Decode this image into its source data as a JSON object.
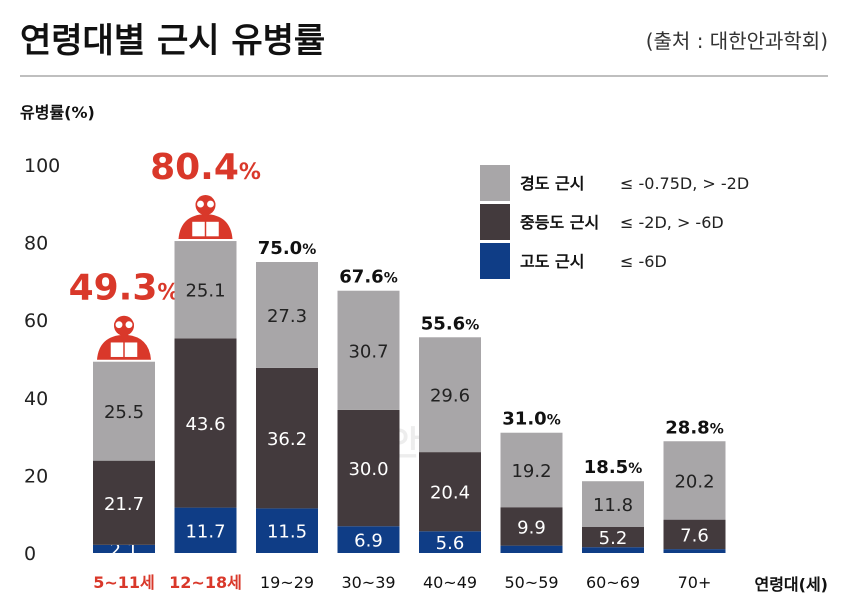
{
  "header": {
    "title": "연령대별 근시 유병률",
    "source": "(출처 : 대한안과학회)"
  },
  "watermark": "안과",
  "colors": {
    "mild": "#a8a6a8",
    "moderate": "#433a3d",
    "high": "#0f3d86",
    "highlight": "#d9382a",
    "text": "#1a1a1a",
    "axis": "#555555",
    "rule": "#999999"
  },
  "chart_data": {
    "type": "bar",
    "stacked": true,
    "ylabel": "유병률(%)",
    "xlabel": "연령대(세)",
    "ylim": [
      0,
      100
    ],
    "yticks": [
      0,
      20,
      40,
      60,
      80,
      100
    ],
    "categories": [
      "5~11세",
      "12~18세",
      "19~29",
      "30~39",
      "40~49",
      "50~59",
      "60~69",
      "70+"
    ],
    "highlight_categories": [
      0,
      1
    ],
    "series": [
      {
        "name": "고도 근시",
        "key": "high",
        "values": [
          2.1,
          11.7,
          11.5,
          6.9,
          5.6,
          1.9,
          1.5,
          1.0
        ]
      },
      {
        "name": "중등도 근시",
        "key": "moderate",
        "values": [
          21.7,
          43.6,
          36.2,
          30.0,
          20.4,
          9.9,
          5.2,
          7.6
        ]
      },
      {
        "name": "경도 근시",
        "key": "mild",
        "values": [
          25.5,
          25.1,
          27.3,
          30.7,
          29.6,
          19.2,
          11.8,
          20.2
        ]
      }
    ],
    "segment_labels": [
      [
        "2.1",
        "21.7",
        "25.5"
      ],
      [
        "11.7",
        "43.6",
        "25.1"
      ],
      [
        "11.5",
        "36.2",
        "27.3"
      ],
      [
        "6.9",
        "30.0",
        "30.7"
      ],
      [
        "5.6",
        "20.4",
        "29.6"
      ],
      [
        "",
        "9.9",
        "19.2"
      ],
      [
        "",
        "5.2",
        "11.8"
      ],
      [
        "",
        "7.6",
        "20.2"
      ]
    ],
    "totals": [
      49.3,
      80.4,
      75.0,
      67.6,
      55.6,
      31.0,
      18.5,
      28.8
    ],
    "total_labels": [
      "49.3",
      "80.4",
      "75.0",
      "67.6",
      "55.6",
      "31.0",
      "18.5",
      "28.8"
    ],
    "total_unit": "%",
    "legend": {
      "placement": "top-right",
      "items": [
        {
          "key": "mild",
          "name": "경도 근시",
          "range": "≤ -0.75D, > -2D"
        },
        {
          "key": "moderate",
          "name": "중등도 근시",
          "range": "≤ -2D, > -6D"
        },
        {
          "key": "high",
          "name": "고도 근시",
          "range": "≤ -6D"
        }
      ]
    },
    "grid": false
  }
}
